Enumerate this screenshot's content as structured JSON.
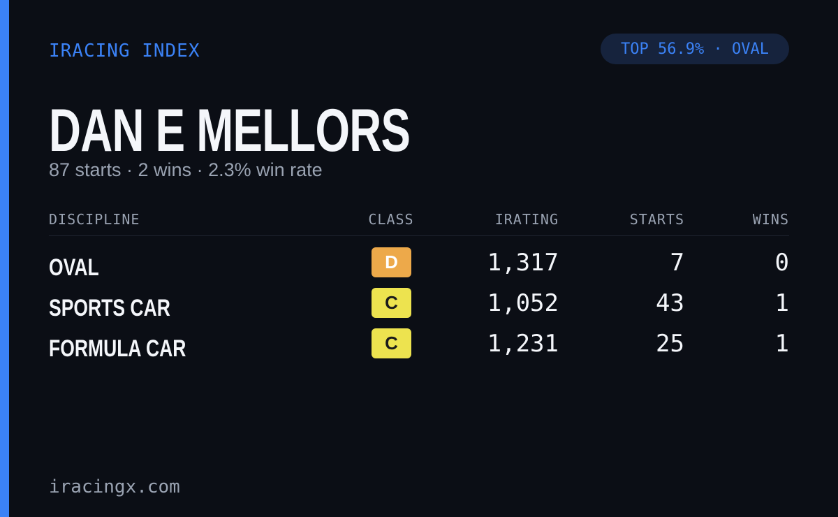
{
  "header": {
    "brand": "IRACING INDEX",
    "badge": "TOP 56.9% · OVAL"
  },
  "profile": {
    "name": "DAN E MELLORS",
    "summary": "87 starts · 2 wins · 2.3% win rate"
  },
  "table": {
    "columns": [
      "DISCIPLINE",
      "CLASS",
      "IRATING",
      "STARTS",
      "WINS"
    ],
    "rows": [
      [
        "OVAL",
        "D",
        "1,317",
        "7",
        "0"
      ],
      [
        "SPORTS CAR",
        "C",
        "1,052",
        "43",
        "1"
      ],
      [
        "FORMULA CAR",
        "C",
        "1,231",
        "25",
        "1"
      ]
    ]
  },
  "footer": {
    "site": "iracingx.com"
  }
}
